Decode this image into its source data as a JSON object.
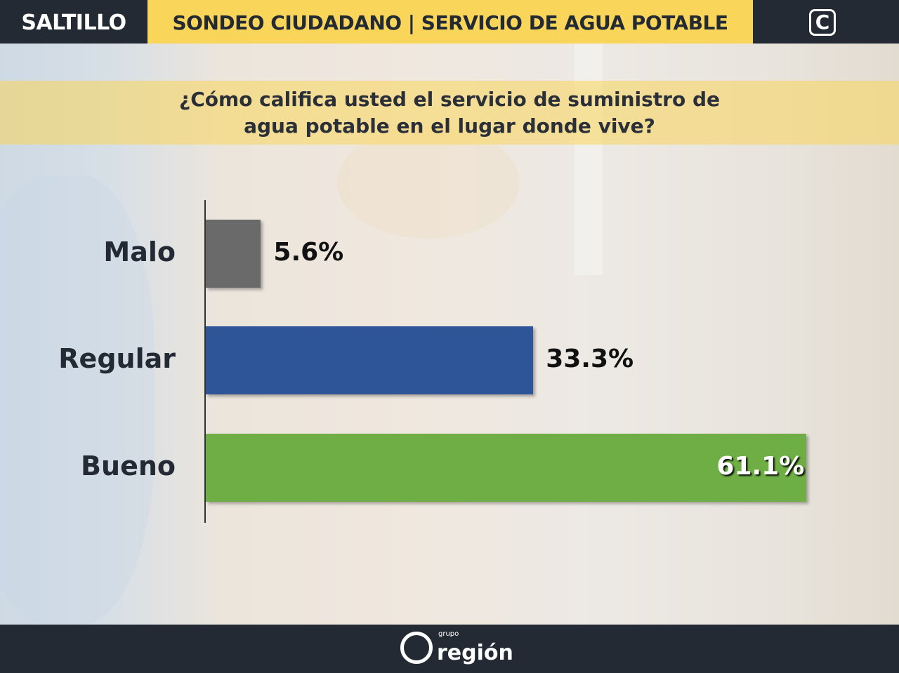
{
  "header": {
    "city": "SALTILLO",
    "title": "SONDEO CIUDADANO | SERVICIO DE AGUA POTABLE",
    "logo_letter": "C"
  },
  "question": {
    "line1": "¿Cómo califica usted el servicio de suministro de",
    "line2": "agua potable en el lugar donde vive?"
  },
  "chart_data": {
    "type": "bar",
    "orientation": "horizontal",
    "categories": [
      "Malo",
      "Regular",
      "Bueno"
    ],
    "values": [
      5.6,
      33.3,
      61.1
    ],
    "labels": [
      "5.6%",
      "33.3%",
      "61.1%"
    ],
    "colors": [
      "#6b6a6a",
      "#2d5597",
      "#6fae45"
    ],
    "xlim": [
      0,
      65
    ],
    "grid": false
  },
  "footer": {
    "brand_small": "grupo",
    "brand": "región"
  }
}
